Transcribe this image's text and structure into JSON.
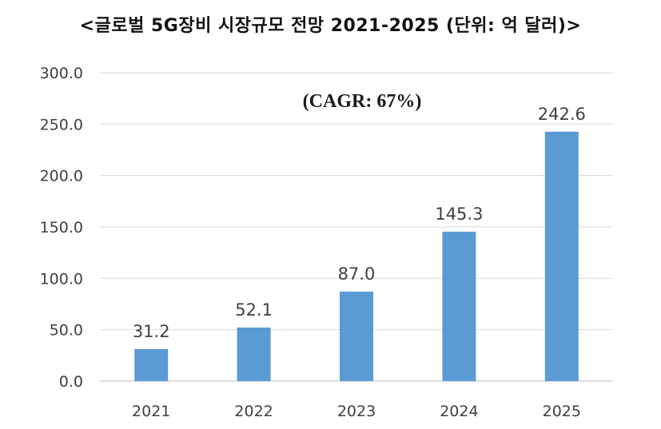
{
  "page_title": "<글로벌 5G장비 시장규모 전망 2021-2025 (단위: 억 달러)>",
  "chart_data": {
    "type": "bar",
    "title": "<글로벌 5G장비 시장규모 전망 2021-2025 (단위: 억 달러)>",
    "annotation": "(CAGR: 67%)",
    "categories": [
      "2021",
      "2022",
      "2023",
      "2024",
      "2025"
    ],
    "values": [
      31.2,
      52.1,
      87.0,
      145.3,
      242.6
    ],
    "value_labels": [
      "31.2",
      "52.1",
      "87.0",
      "145.3",
      "242.6"
    ],
    "yticks": [
      "0.0",
      "50.0",
      "100.0",
      "150.0",
      "200.0",
      "250.0",
      "300.0"
    ],
    "ylim": [
      0,
      300
    ],
    "xlabel": "",
    "ylabel": "",
    "grid": true,
    "legend": "none",
    "colors": {
      "bar": "#5b9bd5",
      "grid": "#d9d9d9",
      "text": "#404040"
    }
  }
}
